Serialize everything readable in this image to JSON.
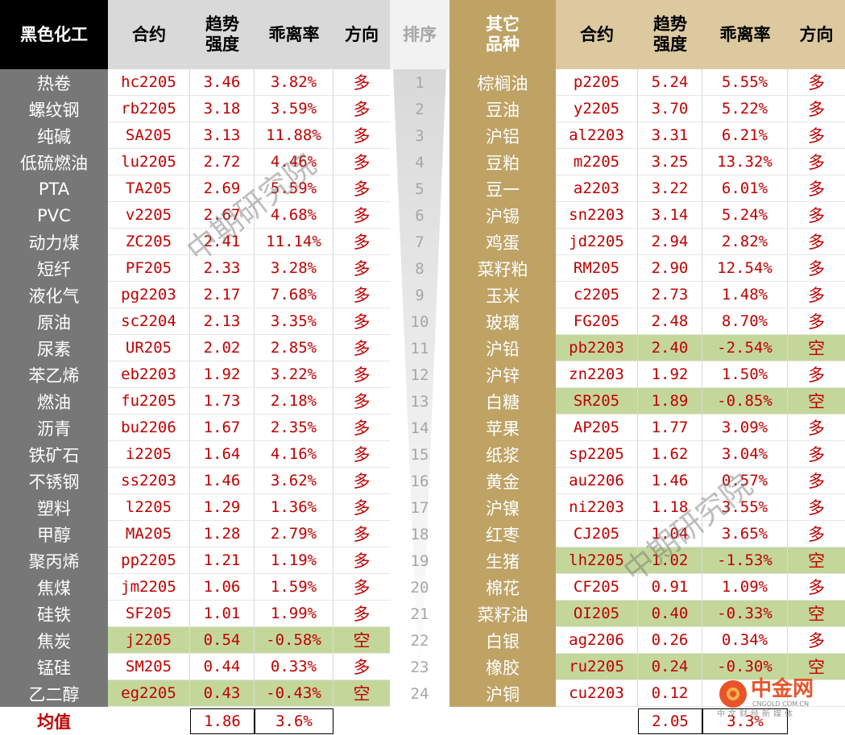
{
  "header": {
    "left_group": "黑色化工",
    "contract": "合约",
    "strength": "趋势\n强度",
    "deviation": "乖离率",
    "direction": "方向",
    "rank": "排序",
    "right_group": "其它\n品种"
  },
  "columns": [
    "品种",
    "合约",
    "趋势强度",
    "乖离率",
    "方向",
    "排序"
  ],
  "left_rows": [
    {
      "name": "热卷",
      "contract": "hc2205",
      "strength": "3.46",
      "deviation": "3.82%",
      "direction": "多",
      "short": false
    },
    {
      "name": "螺纹钢",
      "contract": "rb2205",
      "strength": "3.18",
      "deviation": "3.59%",
      "direction": "多",
      "short": false
    },
    {
      "name": "纯碱",
      "contract": "SA205",
      "strength": "3.13",
      "deviation": "11.88%",
      "direction": "多",
      "short": false
    },
    {
      "name": "低硫燃油",
      "contract": "lu2205",
      "strength": "2.72",
      "deviation": "4.46%",
      "direction": "多",
      "short": false
    },
    {
      "name": "PTA",
      "contract": "TA205",
      "strength": "2.69",
      "deviation": "5.59%",
      "direction": "多",
      "short": false
    },
    {
      "name": "PVC",
      "contract": "v2205",
      "strength": "2.67",
      "deviation": "4.68%",
      "direction": "多",
      "short": false
    },
    {
      "name": "动力煤",
      "contract": "ZC205",
      "strength": "2.41",
      "deviation": "11.14%",
      "direction": "多",
      "short": false
    },
    {
      "name": "短纤",
      "contract": "PF205",
      "strength": "2.33",
      "deviation": "3.28%",
      "direction": "多",
      "short": false
    },
    {
      "name": "液化气",
      "contract": "pg2203",
      "strength": "2.17",
      "deviation": "7.68%",
      "direction": "多",
      "short": false
    },
    {
      "name": "原油",
      "contract": "sc2204",
      "strength": "2.13",
      "deviation": "3.35%",
      "direction": "多",
      "short": false
    },
    {
      "name": "尿素",
      "contract": "UR205",
      "strength": "2.02",
      "deviation": "2.85%",
      "direction": "多",
      "short": false
    },
    {
      "name": "苯乙烯",
      "contract": "eb2203",
      "strength": "1.92",
      "deviation": "3.22%",
      "direction": "多",
      "short": false
    },
    {
      "name": "燃油",
      "contract": "fu2205",
      "strength": "1.73",
      "deviation": "2.18%",
      "direction": "多",
      "short": false
    },
    {
      "name": "沥青",
      "contract": "bu2206",
      "strength": "1.67",
      "deviation": "2.35%",
      "direction": "多",
      "short": false
    },
    {
      "name": "铁矿石",
      "contract": "i2205",
      "strength": "1.64",
      "deviation": "4.16%",
      "direction": "多",
      "short": false
    },
    {
      "name": "不锈钢",
      "contract": "ss2203",
      "strength": "1.46",
      "deviation": "3.62%",
      "direction": "多",
      "short": false
    },
    {
      "name": "塑料",
      "contract": "l2205",
      "strength": "1.29",
      "deviation": "1.36%",
      "direction": "多",
      "short": false
    },
    {
      "name": "甲醇",
      "contract": "MA205",
      "strength": "1.28",
      "deviation": "2.79%",
      "direction": "多",
      "short": false
    },
    {
      "name": "聚丙烯",
      "contract": "pp2205",
      "strength": "1.21",
      "deviation": "1.19%",
      "direction": "多",
      "short": false
    },
    {
      "name": "焦煤",
      "contract": "jm2205",
      "strength": "1.06",
      "deviation": "1.59%",
      "direction": "多",
      "short": false
    },
    {
      "name": "硅铁",
      "contract": "SF205",
      "strength": "1.01",
      "deviation": "1.99%",
      "direction": "多",
      "short": false
    },
    {
      "name": "焦炭",
      "contract": "j2205",
      "strength": "0.54",
      "deviation": "-0.58%",
      "direction": "空",
      "short": true
    },
    {
      "name": "锰硅",
      "contract": "SM205",
      "strength": "0.44",
      "deviation": "0.33%",
      "direction": "多",
      "short": false
    },
    {
      "name": "乙二醇",
      "contract": "eg2205",
      "strength": "0.43",
      "deviation": "-0.43%",
      "direction": "空",
      "short": true
    }
  ],
  "ranks": [
    "1",
    "2",
    "3",
    "4",
    "5",
    "6",
    "7",
    "8",
    "9",
    "10",
    "11",
    "12",
    "13",
    "14",
    "15",
    "16",
    "17",
    "18",
    "19",
    "20",
    "21",
    "22",
    "23",
    "24"
  ],
  "right_rows": [
    {
      "name": "棕榈油",
      "contract": "p2205",
      "strength": "5.24",
      "deviation": "5.55%",
      "direction": "多",
      "short": false
    },
    {
      "name": "豆油",
      "contract": "y2205",
      "strength": "3.70",
      "deviation": "5.22%",
      "direction": "多",
      "short": false
    },
    {
      "name": "沪铝",
      "contract": "al2203",
      "strength": "3.31",
      "deviation": "6.21%",
      "direction": "多",
      "short": false
    },
    {
      "name": "豆粕",
      "contract": "m2205",
      "strength": "3.25",
      "deviation": "13.32%",
      "direction": "多",
      "short": false
    },
    {
      "name": "豆一",
      "contract": "a2203",
      "strength": "3.22",
      "deviation": "6.01%",
      "direction": "多",
      "short": false
    },
    {
      "name": "沪锡",
      "contract": "sn2203",
      "strength": "3.14",
      "deviation": "5.24%",
      "direction": "多",
      "short": false
    },
    {
      "name": "鸡蛋",
      "contract": "jd2205",
      "strength": "2.94",
      "deviation": "2.82%",
      "direction": "多",
      "short": false
    },
    {
      "name": "菜籽粕",
      "contract": "RM205",
      "strength": "2.90",
      "deviation": "12.54%",
      "direction": "多",
      "short": false
    },
    {
      "name": "玉米",
      "contract": "c2205",
      "strength": "2.73",
      "deviation": "1.48%",
      "direction": "多",
      "short": false
    },
    {
      "name": "玻璃",
      "contract": "FG205",
      "strength": "2.48",
      "deviation": "8.70%",
      "direction": "多",
      "short": false
    },
    {
      "name": "沪铅",
      "contract": "pb2203",
      "strength": "2.40",
      "deviation": "-2.54%",
      "direction": "空",
      "short": true
    },
    {
      "name": "沪锌",
      "contract": "zn2203",
      "strength": "1.92",
      "deviation": "1.50%",
      "direction": "多",
      "short": false
    },
    {
      "name": "白糖",
      "contract": "SR205",
      "strength": "1.89",
      "deviation": "-0.85%",
      "direction": "空",
      "short": true
    },
    {
      "name": "苹果",
      "contract": "AP205",
      "strength": "1.77",
      "deviation": "3.09%",
      "direction": "多",
      "short": false
    },
    {
      "name": "纸浆",
      "contract": "sp2205",
      "strength": "1.62",
      "deviation": "3.04%",
      "direction": "多",
      "short": false
    },
    {
      "name": "黄金",
      "contract": "au2206",
      "strength": "1.46",
      "deviation": "0.57%",
      "direction": "多",
      "short": false
    },
    {
      "name": "沪镍",
      "contract": "ni2203",
      "strength": "1.18",
      "deviation": "3.55%",
      "direction": "多",
      "short": false
    },
    {
      "name": "红枣",
      "contract": "CJ205",
      "strength": "1.04",
      "deviation": "3.65%",
      "direction": "多",
      "short": false
    },
    {
      "name": "生猪",
      "contract": "lh2205",
      "strength": "1.02",
      "deviation": "-1.53%",
      "direction": "空",
      "short": true
    },
    {
      "name": "棉花",
      "contract": "CF205",
      "strength": "0.91",
      "deviation": "1.09%",
      "direction": "多",
      "short": false
    },
    {
      "name": "菜籽油",
      "contract": "OI205",
      "strength": "0.40",
      "deviation": "-0.33%",
      "direction": "空",
      "short": true
    },
    {
      "name": "白银",
      "contract": "ag2206",
      "strength": "0.26",
      "deviation": "0.34%",
      "direction": "多",
      "short": false
    },
    {
      "name": "橡胶",
      "contract": "ru2205",
      "strength": "0.24",
      "deviation": "-0.30%",
      "direction": "空",
      "short": true
    },
    {
      "name": "沪铜",
      "contract": "cu2203",
      "strength": "0.12",
      "deviation": "",
      "direction": "",
      "short": false
    }
  ],
  "average": {
    "label": "均值",
    "left_strength": "1.86",
    "left_deviation": "3.6%",
    "right_strength": "2.05",
    "right_deviation": "3.3%"
  },
  "watermark": {
    "text": "中期研究院"
  },
  "logo": {
    "text": "中金网",
    "sub_text": "CNGOLD.COM.CN",
    "tagline": "中文财经新媒体"
  },
  "colors": {
    "left_header_bg": "#000000",
    "left_name_bg": "#777777",
    "right_header_bg": "#bfa365",
    "right_header_light_bg": "#dcc9a0",
    "value_text": "#c00000",
    "short_highlight": "#c4d79b",
    "rank_text": "#a6a6a6"
  },
  "chart_data": {
    "type": "table",
    "columns": [
      "品种",
      "合约",
      "趋势强度",
      "乖离率",
      "方向",
      "排序"
    ],
    "groups": [
      "黑色化工",
      "其它品种"
    ]
  }
}
